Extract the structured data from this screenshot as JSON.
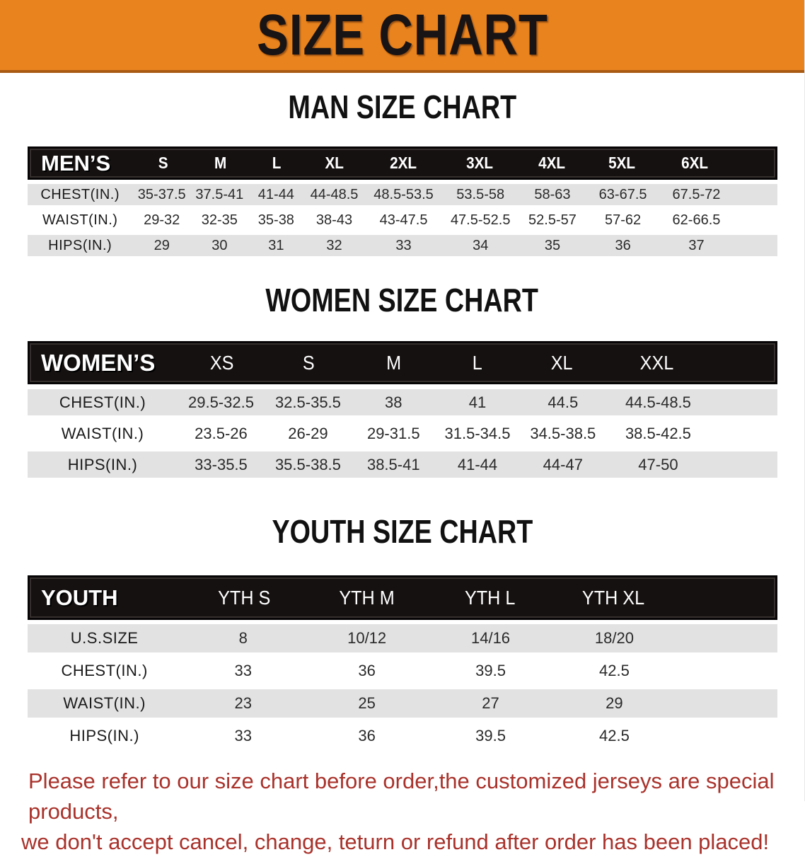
{
  "banner": {
    "title": "SIZE CHART",
    "bg_color": "#E8831E",
    "edge_color": "#A85A13",
    "text_color": "#181314"
  },
  "colors": {
    "header_bar": "#161111",
    "row_gray": "#E3E2E2",
    "row_white": "#FFFFFF",
    "footer_red": "#A9322B"
  },
  "sections": {
    "men": {
      "heading": "MAN SIZE CHART",
      "header_label": "MEN’S",
      "sizes": [
        "S",
        "M",
        "L",
        "XL",
        "2XL",
        "3XL",
        "4XL",
        "5XL",
        "6XL"
      ],
      "rows": [
        {
          "label": "CHEST(IN.)",
          "values": [
            "35-37.5",
            "37.5-41",
            "41-44",
            "44-48.5",
            "48.5-53.5",
            "53.5-58",
            "58-63",
            "63-67.5",
            "67.5-72"
          ]
        },
        {
          "label": "WAIST(IN.)",
          "values": [
            "29-32",
            "32-35",
            "35-38",
            "38-43",
            "43-47.5",
            "47.5-52.5",
            "52.5-57",
            "57-62",
            "62-66.5"
          ]
        },
        {
          "label": "HIPS(IN.)",
          "values": [
            "29",
            "30",
            "31",
            "32",
            "33",
            "34",
            "35",
            "36",
            "37"
          ]
        }
      ]
    },
    "women": {
      "heading": "WOMEN SIZE CHART",
      "header_label": "WOMEN’S",
      "sizes": [
        "XS",
        "S",
        "M",
        "L",
        "XL",
        "XXL"
      ],
      "rows": [
        {
          "label": "CHEST(IN.)",
          "values": [
            "29.5-32.5",
            "32.5-35.5",
            "38",
            "41",
            "44.5",
            "44.5-48.5"
          ]
        },
        {
          "label": "WAIST(IN.)",
          "values": [
            "23.5-26",
            "26-29",
            "29-31.5",
            "31.5-34.5",
            "34.5-38.5",
            "38.5-42.5"
          ]
        },
        {
          "label": "HIPS(IN.)",
          "values": [
            "33-35.5",
            "35.5-38.5",
            "38.5-41",
            "41-44",
            "44-47",
            "47-50"
          ]
        }
      ]
    },
    "youth": {
      "heading": "YOUTH SIZE CHART",
      "header_label": "YOUTH",
      "sizes": [
        "YTH S",
        "YTH M",
        "YTH L",
        "YTH XL"
      ],
      "rows": [
        {
          "label": "U.S.SIZE",
          "values": [
            "8",
            "10/12",
            "14/16",
            "18/20"
          ]
        },
        {
          "label": "CHEST(IN.)",
          "values": [
            "33",
            "36",
            "39.5",
            "42.5"
          ]
        },
        {
          "label": "WAIST(IN.)",
          "values": [
            "23",
            "25",
            "27",
            "29"
          ]
        },
        {
          "label": "HIPS(IN.)",
          "values": [
            "33",
            "36",
            "39.5",
            "42.5"
          ]
        }
      ]
    }
  },
  "footer": {
    "line1": "Please refer to our size chart before order,the customized jerseys are special products,",
    "line2": "we don't accept cancel, change, teturn or refund after order has been placed!"
  }
}
